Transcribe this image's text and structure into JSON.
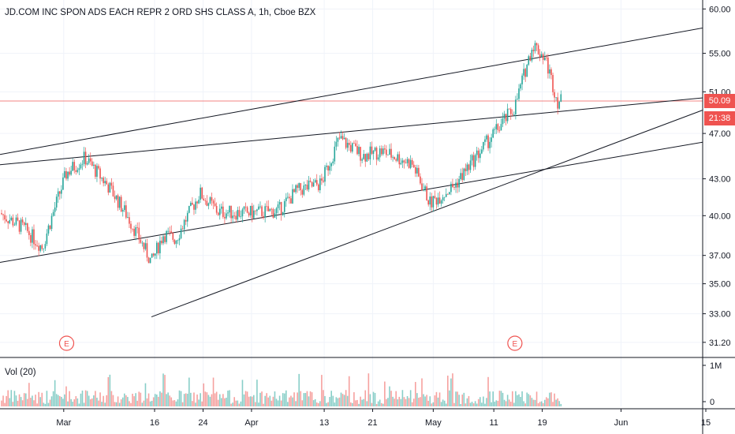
{
  "header": {
    "title": "JD.COM INC SPON ADS EACH REPR 2 ORD SHS CLASS A, 1h, Cboe BZX"
  },
  "volume": {
    "label": "Vol (20)",
    "ticks": [
      "1M",
      "0"
    ]
  },
  "price_tags": {
    "last_price": "50.09",
    "countdown": "21:38"
  },
  "earnings_marker": {
    "label": "E"
  },
  "colors": {
    "up": "#26a69a",
    "down": "#ef5350",
    "price_line": "#ef5350",
    "countdown_bg": "#ef5350",
    "trendline": "#131722",
    "axis_line": "#131722"
  },
  "chart_data": {
    "type": "candlestick",
    "title": "JD.COM INC SPON ADS EACH REPR 2 ORD SHS CLASS A, 1h, Cboe BZX",
    "y_axis": {
      "scale": "log",
      "ticks": [
        31.2,
        33.0,
        35.0,
        37.0,
        40.0,
        43.0,
        47.0,
        51.0,
        55.0,
        60.0
      ],
      "tick_labels": [
        "31.20",
        "33.00",
        "35.00",
        "37.00",
        "40.00",
        "43.00",
        "47.00",
        "51.00",
        "55.00",
        "60.00"
      ],
      "range": [
        31.0,
        60.5
      ]
    },
    "x_axis": {
      "ticks": [
        "Mar",
        "16",
        "24",
        "Apr",
        "13",
        "21",
        "May",
        "11",
        "19",
        "Jun",
        "15"
      ]
    },
    "earnings_events": [
      "2020-03-02",
      "2020-05-15"
    ],
    "last_price": 50.09,
    "trendlines": [
      {
        "from": [
          "2020-02-20",
          45.1
        ],
        "to": [
          "2020-06-15",
          57.8
        ]
      },
      {
        "from": [
          "2020-02-20",
          44.2
        ],
        "to": [
          "2020-06-15",
          50.4
        ]
      },
      {
        "from": [
          "2020-02-20",
          36.5
        ],
        "to": [
          "2020-06-15",
          46.2
        ]
      },
      {
        "from": [
          "2020-03-16",
          32.8
        ],
        "to": [
          "2020-06-15",
          49.2
        ]
      }
    ],
    "period_closes": [
      {
        "t": "2020-02-20",
        "v": 40.2
      },
      {
        "t": "2020-02-24",
        "v": 39.0
      },
      {
        "t": "2020-02-27",
        "v": 37.6
      },
      {
        "t": "2020-03-02",
        "v": 43.5
      },
      {
        "t": "2020-03-05",
        "v": 44.8
      },
      {
        "t": "2020-03-09",
        "v": 42.3
      },
      {
        "t": "2020-03-12",
        "v": 40.0
      },
      {
        "t": "2020-03-16",
        "v": 36.5
      },
      {
        "t": "2020-03-18",
        "v": 38.6
      },
      {
        "t": "2020-03-20",
        "v": 38.2
      },
      {
        "t": "2020-03-24",
        "v": 41.8
      },
      {
        "t": "2020-03-27",
        "v": 40.3
      },
      {
        "t": "2020-04-01",
        "v": 40.2
      },
      {
        "t": "2020-04-06",
        "v": 40.4
      },
      {
        "t": "2020-04-09",
        "v": 42.0
      },
      {
        "t": "2020-04-13",
        "v": 42.6
      },
      {
        "t": "2020-04-16",
        "v": 46.5
      },
      {
        "t": "2020-04-20",
        "v": 45.0
      },
      {
        "t": "2020-04-23",
        "v": 45.4
      },
      {
        "t": "2020-04-28",
        "v": 44.3
      },
      {
        "t": "2020-05-01",
        "v": 41.0
      },
      {
        "t": "2020-05-05",
        "v": 42.4
      },
      {
        "t": "2020-05-08",
        "v": 44.5
      },
      {
        "t": "2020-05-12",
        "v": 47.3
      },
      {
        "t": "2020-05-15",
        "v": 49.5
      },
      {
        "t": "2020-05-18",
        "v": 56.0
      },
      {
        "t": "2020-05-20",
        "v": 54.5
      },
      {
        "t": "2020-05-22",
        "v": 50.09
      }
    ],
    "volume_scale": {
      "ticks": [
        "1M",
        "0"
      ]
    },
    "grid": true
  }
}
